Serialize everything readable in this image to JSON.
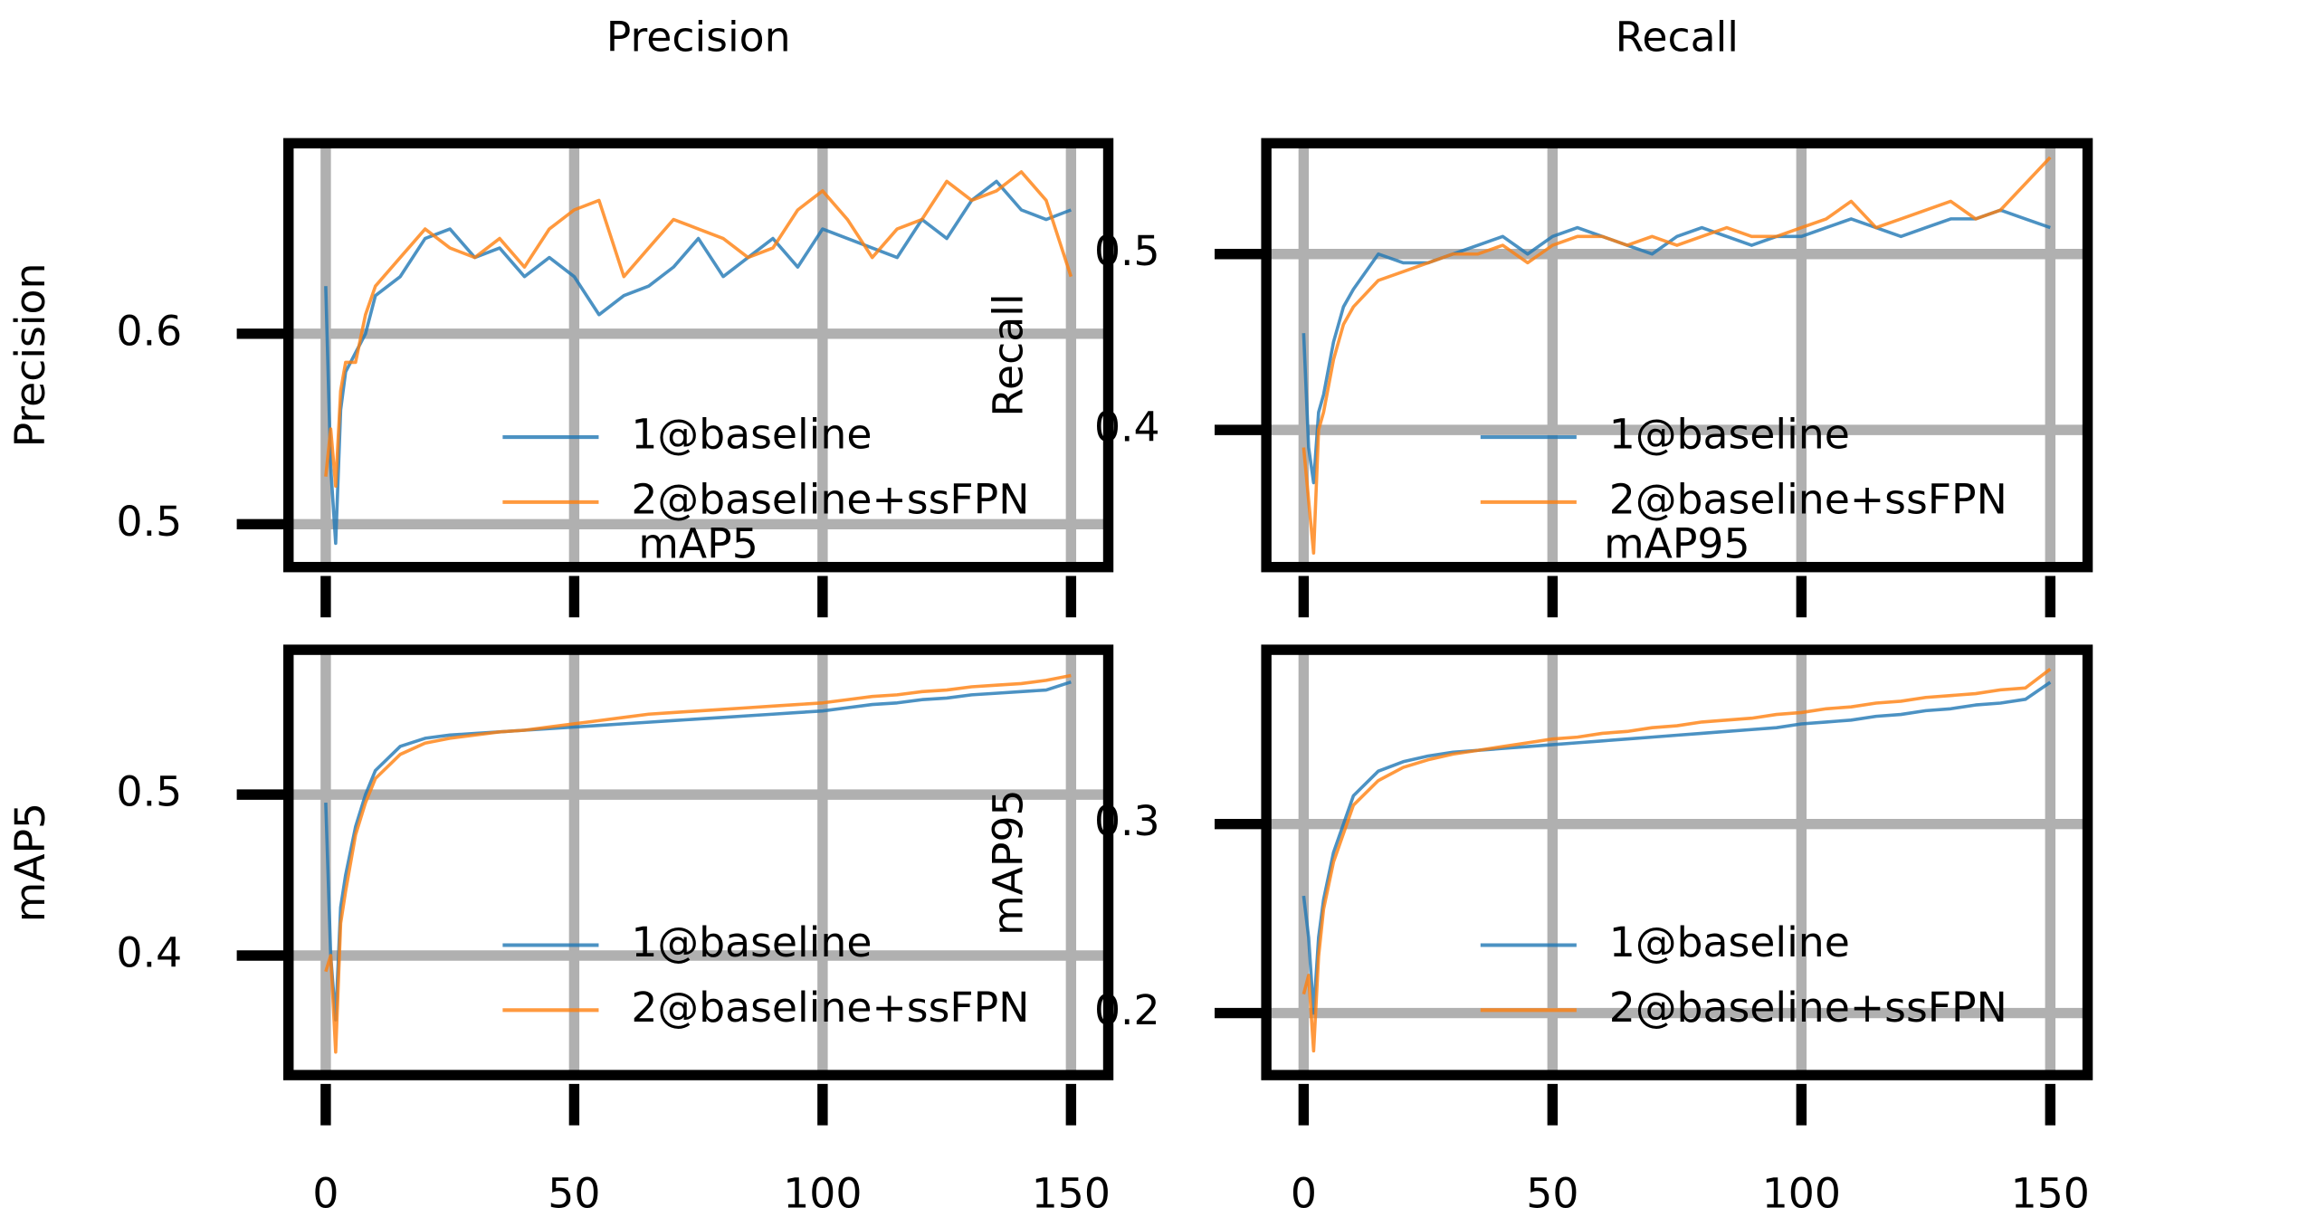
{
  "chart_data": [
    {
      "type": "line",
      "title": "Precision",
      "ylabel": "Precision",
      "x": [
        0,
        1,
        2,
        3,
        4,
        6,
        8,
        10,
        15,
        20,
        25,
        30,
        35,
        40,
        45,
        50,
        55,
        60,
        65,
        70,
        75,
        80,
        85,
        90,
        95,
        100,
        105,
        110,
        115,
        120,
        125,
        130,
        135,
        140,
        145,
        150
      ],
      "series": [
        {
          "name": "1@baseline",
          "color": "#1f77b4",
          "values": [
            0.625,
            0.53,
            0.49,
            0.56,
            0.58,
            0.59,
            0.6,
            0.62,
            0.63,
            0.65,
            0.655,
            0.64,
            0.645,
            0.63,
            0.64,
            0.63,
            0.61,
            0.62,
            0.625,
            0.635,
            0.65,
            0.63,
            0.64,
            0.65,
            0.635,
            0.655,
            0.65,
            0.645,
            0.64,
            0.66,
            0.65,
            0.67,
            0.68,
            0.665,
            0.66,
            0.665
          ]
        },
        {
          "name": "2@baseline+ssFPN",
          "color": "#ff7f0e",
          "values": [
            0.525,
            0.55,
            0.52,
            0.57,
            0.585,
            0.585,
            0.61,
            0.625,
            0.64,
            0.655,
            0.645,
            0.64,
            0.65,
            0.635,
            0.655,
            0.665,
            0.67,
            0.63,
            0.645,
            0.66,
            0.655,
            0.65,
            0.64,
            0.645,
            0.665,
            0.675,
            0.66,
            0.64,
            0.655,
            0.66,
            0.68,
            0.67,
            0.675,
            0.685,
            0.67,
            0.63
          ]
        }
      ],
      "xlim": [
        -7.5,
        157.5
      ],
      "ylim": [
        0.4775,
        0.7
      ],
      "xticks": [
        0,
        50,
        100,
        150
      ],
      "yticks": [
        0.5,
        0.6
      ],
      "grid": true,
      "show_xticklabels": false
    },
    {
      "type": "line",
      "title": "Recall",
      "ylabel": "Recall",
      "x": [
        0,
        1,
        2,
        3,
        4,
        6,
        8,
        10,
        15,
        20,
        25,
        30,
        35,
        40,
        45,
        50,
        55,
        60,
        65,
        70,
        75,
        80,
        85,
        90,
        95,
        100,
        105,
        110,
        115,
        120,
        125,
        130,
        135,
        140,
        145,
        150
      ],
      "series": [
        {
          "name": "1@baseline",
          "color": "#1f77b4",
          "values": [
            0.455,
            0.39,
            0.37,
            0.41,
            0.42,
            0.45,
            0.47,
            0.48,
            0.5,
            0.495,
            0.495,
            0.5,
            0.505,
            0.51,
            0.5,
            0.51,
            0.515,
            0.51,
            0.505,
            0.5,
            0.51,
            0.515,
            0.51,
            0.505,
            0.51,
            0.51,
            0.515,
            0.52,
            0.515,
            0.51,
            0.515,
            0.52,
            0.52,
            0.525,
            0.52,
            0.515
          ]
        },
        {
          "name": "2@baseline+ssFPN",
          "color": "#ff7f0e",
          "values": [
            0.39,
            0.36,
            0.33,
            0.4,
            0.41,
            0.44,
            0.46,
            0.47,
            0.485,
            0.49,
            0.495,
            0.5,
            0.5,
            0.505,
            0.495,
            0.505,
            0.51,
            0.51,
            0.505,
            0.51,
            0.505,
            0.51,
            0.515,
            0.51,
            0.51,
            0.515,
            0.52,
            0.53,
            0.515,
            0.52,
            0.525,
            0.53,
            0.52,
            0.525,
            0.54,
            0.555
          ]
        }
      ],
      "xlim": [
        -7.5,
        157.5
      ],
      "ylim": [
        0.322,
        0.563
      ],
      "xticks": [
        0,
        50,
        100,
        150
      ],
      "yticks": [
        0.4,
        0.5
      ],
      "grid": true,
      "show_xticklabels": false
    },
    {
      "type": "line",
      "title": "mAP5",
      "ylabel": "mAP5",
      "x": [
        0,
        1,
        2,
        3,
        4,
        6,
        8,
        10,
        15,
        20,
        25,
        30,
        35,
        40,
        45,
        50,
        55,
        60,
        65,
        70,
        75,
        80,
        85,
        90,
        95,
        100,
        105,
        110,
        115,
        120,
        125,
        130,
        135,
        140,
        145,
        150
      ],
      "series": [
        {
          "name": "1@baseline",
          "color": "#1f77b4",
          "values": [
            0.495,
            0.4,
            0.36,
            0.43,
            0.45,
            0.48,
            0.5,
            0.515,
            0.53,
            0.535,
            0.537,
            0.538,
            0.539,
            0.54,
            0.541,
            0.542,
            0.543,
            0.544,
            0.545,
            0.546,
            0.547,
            0.548,
            0.549,
            0.55,
            0.551,
            0.552,
            0.554,
            0.556,
            0.557,
            0.559,
            0.56,
            0.562,
            0.563,
            0.564,
            0.565,
            0.57
          ]
        },
        {
          "name": "2@baseline+ssFPN",
          "color": "#ff7f0e",
          "values": [
            0.39,
            0.4,
            0.34,
            0.42,
            0.44,
            0.475,
            0.495,
            0.51,
            0.525,
            0.532,
            0.535,
            0.537,
            0.539,
            0.54,
            0.542,
            0.544,
            0.546,
            0.548,
            0.55,
            0.551,
            0.552,
            0.553,
            0.554,
            0.555,
            0.556,
            0.557,
            0.559,
            0.561,
            0.562,
            0.564,
            0.565,
            0.567,
            0.568,
            0.569,
            0.571,
            0.574
          ]
        }
      ],
      "xlim": [
        -7.5,
        157.5
      ],
      "ylim": [
        0.3257,
        0.59
      ],
      "xticks": [
        0,
        50,
        100,
        150
      ],
      "yticks": [
        0.4,
        0.5
      ],
      "grid": true,
      "show_xticklabels": true
    },
    {
      "type": "line",
      "title": "mAP95",
      "ylabel": "mAP95",
      "x": [
        0,
        1,
        2,
        3,
        4,
        6,
        8,
        10,
        15,
        20,
        25,
        30,
        35,
        40,
        45,
        50,
        55,
        60,
        65,
        70,
        75,
        80,
        85,
        90,
        95,
        100,
        105,
        110,
        115,
        120,
        125,
        130,
        135,
        140,
        145,
        150
      ],
      "series": [
        {
          "name": "1@baseline",
          "color": "#1f77b4",
          "values": [
            0.262,
            0.24,
            0.2,
            0.24,
            0.26,
            0.285,
            0.3,
            0.315,
            0.328,
            0.333,
            0.336,
            0.338,
            0.339,
            0.34,
            0.341,
            0.342,
            0.343,
            0.344,
            0.345,
            0.346,
            0.347,
            0.348,
            0.349,
            0.35,
            0.351,
            0.353,
            0.354,
            0.355,
            0.357,
            0.358,
            0.36,
            0.361,
            0.363,
            0.364,
            0.366,
            0.375
          ]
        },
        {
          "name": "2@baseline+ssFPN",
          "color": "#ff7f0e",
          "values": [
            0.21,
            0.22,
            0.18,
            0.23,
            0.255,
            0.28,
            0.295,
            0.31,
            0.323,
            0.33,
            0.334,
            0.337,
            0.339,
            0.341,
            0.343,
            0.345,
            0.346,
            0.348,
            0.349,
            0.351,
            0.352,
            0.354,
            0.355,
            0.356,
            0.358,
            0.359,
            0.361,
            0.362,
            0.364,
            0.365,
            0.367,
            0.368,
            0.369,
            0.371,
            0.372,
            0.382
          ]
        }
      ],
      "xlim": [
        -7.5,
        157.5
      ],
      "ylim": [
        0.1672,
        0.3922
      ],
      "xticks": [
        0,
        50,
        100,
        150
      ],
      "yticks": [
        0.2,
        0.3
      ],
      "grid": true,
      "show_xticklabels": true
    }
  ]
}
